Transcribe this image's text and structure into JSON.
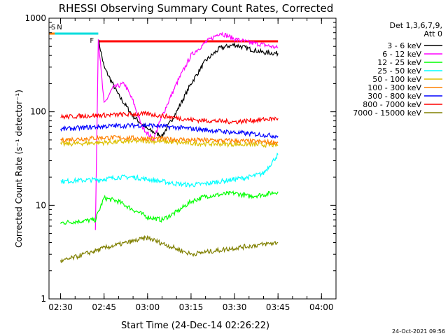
{
  "chart_data": {
    "type": "line",
    "title": "RHESSI Observing Summary Count Rates, Corrected",
    "xlabel": "Start Time (24-Dec-14 02:26:22)",
    "ylabel": "Corrected Count Rate (s⁻¹ detector⁻¹)",
    "y_scale": "log",
    "ylim": [
      1,
      1000
    ],
    "xlim": [
      "02:26",
      "04:05"
    ],
    "x_ticks": [
      "02:30",
      "02:45",
      "03:00",
      "03:15",
      "03:30",
      "03:45",
      "04:00"
    ],
    "y_ticks": [
      "1",
      "10",
      "100",
      "1000"
    ],
    "grid": false,
    "legend_header": [
      "Det 1,3,6,7,9,",
      "Att 0"
    ],
    "timestamp": "24-Oct-2021 09:56",
    "flags": [
      {
        "label": "S",
        "color": "#ff8000",
        "start": "02:26",
        "end": "02:28"
      },
      {
        "label": "N",
        "color": "#00dddd",
        "start": "02:28",
        "end": "02:43"
      },
      {
        "label": "F",
        "color": "#ff0000",
        "start": "02:43",
        "end": "03:45"
      }
    ],
    "series": [
      {
        "name": "3 - 6 keV",
        "color": "#000000",
        "x": [
          "02:43",
          "02:45",
          "02:50",
          "02:55",
          "03:00",
          "03:05",
          "03:10",
          "03:15",
          "03:20",
          "03:25",
          "03:30",
          "03:35",
          "03:40",
          "03:45"
        ],
        "values": [
          600,
          300,
          150,
          90,
          65,
          55,
          100,
          200,
          350,
          480,
          520,
          470,
          430,
          420
        ]
      },
      {
        "name": "6 - 12 keV",
        "color": "#ff00ff",
        "x": [
          "02:42",
          "02:43",
          "02:45",
          "02:48",
          "02:52",
          "02:55",
          "02:58",
          "03:02",
          "03:05",
          "03:10",
          "03:15",
          "03:20",
          "03:25",
          "03:30",
          "03:35",
          "03:40",
          "03:45"
        ],
        "values": [
          5.5,
          600,
          120,
          180,
          200,
          130,
          70,
          50,
          90,
          200,
          400,
          550,
          700,
          600,
          550,
          520,
          480
        ]
      },
      {
        "name": "12 - 25 keV",
        "color": "#00ff00",
        "x": [
          "02:30",
          "02:42",
          "02:45",
          "02:50",
          "02:55",
          "03:00",
          "03:05",
          "03:10",
          "03:15",
          "03:20",
          "03:25",
          "03:30",
          "03:35",
          "03:40",
          "03:45"
        ],
        "values": [
          6.5,
          7,
          12,
          11,
          9,
          7.5,
          7,
          8.5,
          11,
          12.5,
          13,
          13.5,
          12.5,
          13,
          14
        ]
      },
      {
        "name": "25 - 50 keV",
        "color": "#00ffff",
        "x": [
          "02:30",
          "02:45",
          "02:50",
          "02:55",
          "03:00",
          "03:05",
          "03:10",
          "03:15",
          "03:20",
          "03:25",
          "03:30",
          "03:35",
          "03:40",
          "03:45"
        ],
        "values": [
          18,
          19,
          20,
          20,
          19,
          18,
          17,
          16.5,
          17,
          18,
          19,
          20,
          22,
          35
        ]
      },
      {
        "name": "50 - 100 keV",
        "color": "#ddc000",
        "x": [
          "02:30",
          "02:45",
          "03:00",
          "03:15",
          "03:30",
          "03:45"
        ],
        "values": [
          45,
          47,
          49,
          46,
          45,
          44
        ]
      },
      {
        "name": "100 - 300 keV",
        "color": "#ff8000",
        "x": [
          "02:30",
          "02:45",
          "03:00",
          "03:15",
          "03:30",
          "03:45"
        ],
        "values": [
          50,
          53,
          52,
          50,
          49,
          47
        ]
      },
      {
        "name": "300 - 800 keV",
        "color": "#0000ff",
        "x": [
          "02:30",
          "02:45",
          "03:00",
          "03:15",
          "03:30",
          "03:45"
        ],
        "values": [
          65,
          70,
          72,
          66,
          60,
          55
        ]
      },
      {
        "name": "800 - 7000 keV",
        "color": "#ff0000",
        "x": [
          "02:30",
          "02:45",
          "03:00",
          "03:15",
          "03:30",
          "03:45"
        ],
        "values": [
          88,
          92,
          95,
          82,
          78,
          85
        ]
      },
      {
        "name": "7000 - 15000 keV",
        "color": "#808000",
        "x": [
          "02:30",
          "02:45",
          "03:00",
          "03:15",
          "03:30",
          "03:45"
        ],
        "values": [
          2.5,
          3.5,
          4.5,
          3,
          3.5,
          4
        ]
      }
    ]
  }
}
